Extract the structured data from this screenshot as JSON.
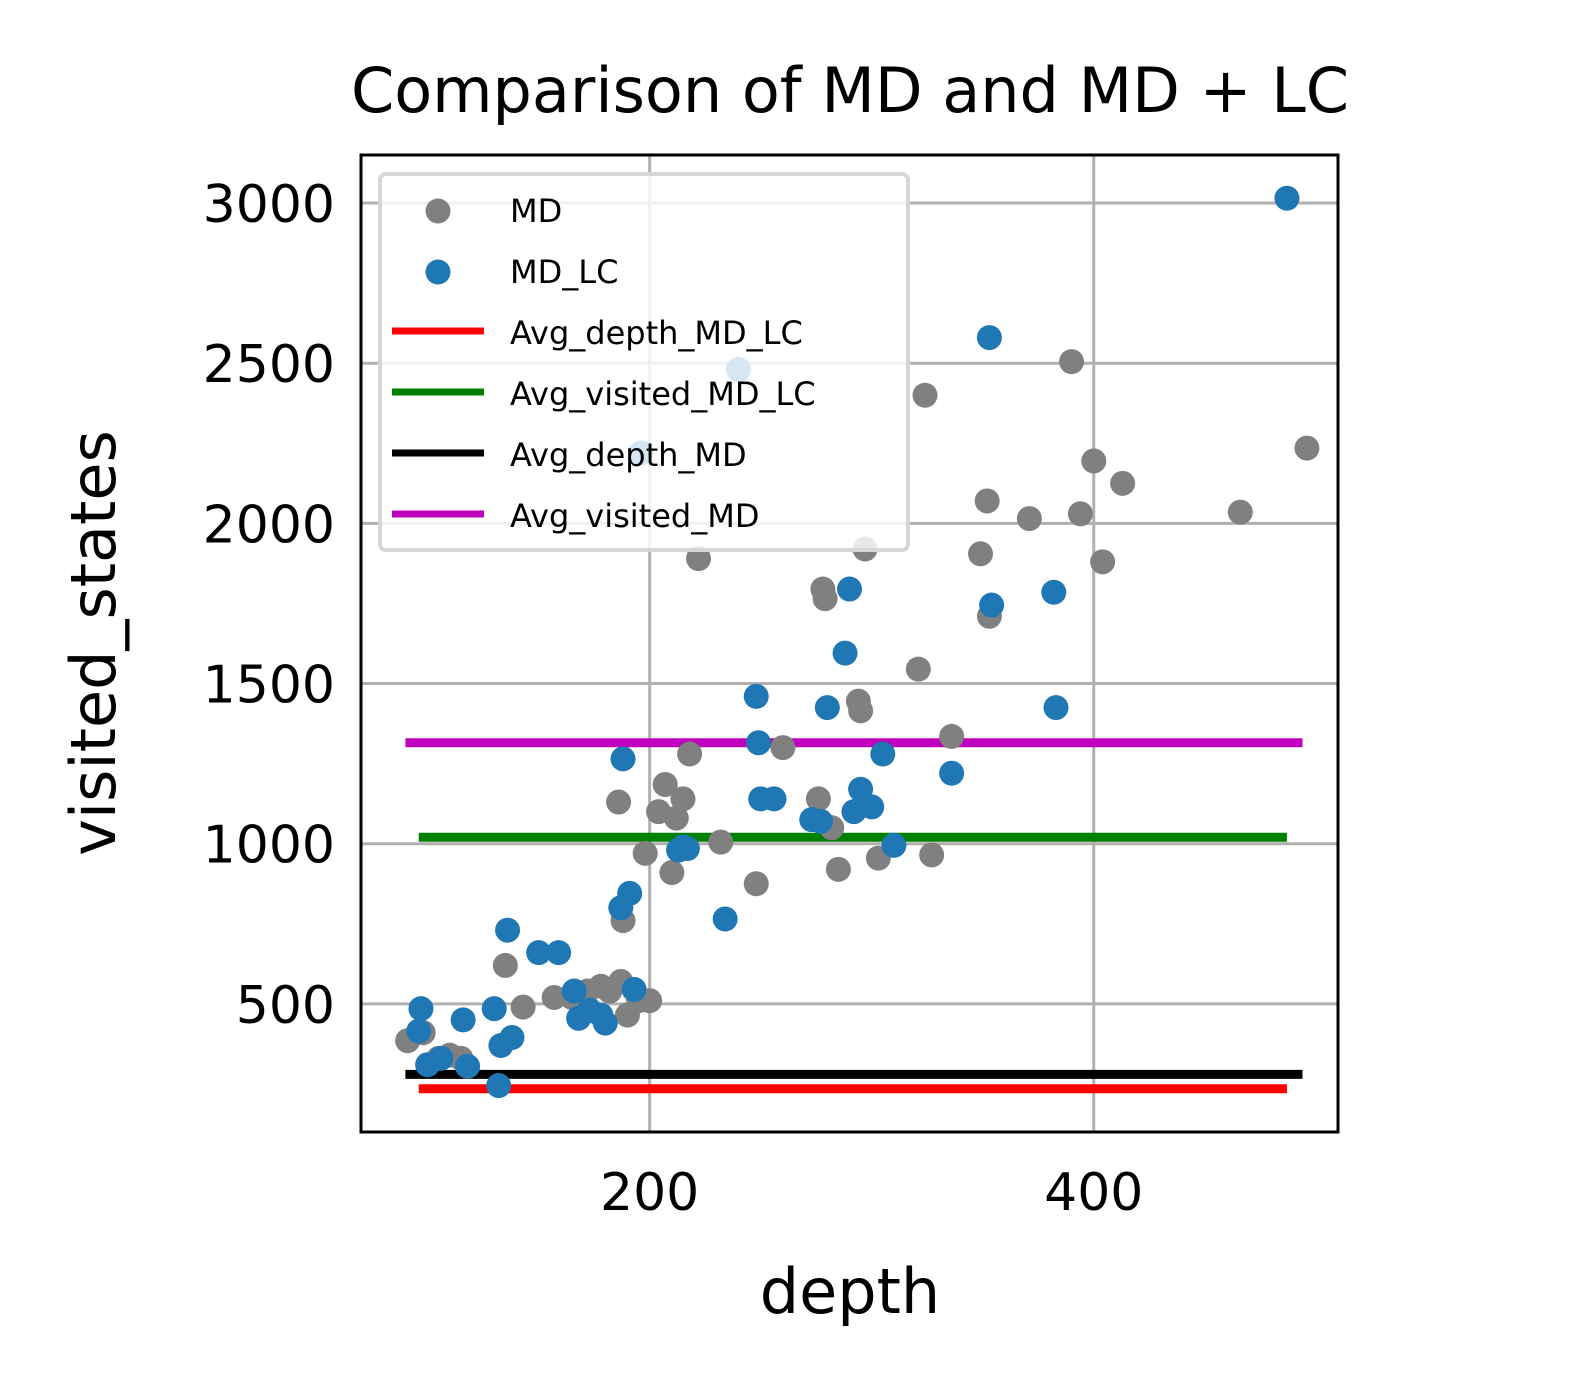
{
  "chart_data": {
    "type": "scatter",
    "title": "Comparison of MD and MD + LC",
    "xlabel": "depth",
    "ylabel": "visited_states",
    "xlim": [
      70,
      510
    ],
    "ylim": [
      100,
      3150
    ],
    "xticks": [
      200,
      400
    ],
    "yticks": [
      500,
      1000,
      1500,
      2000,
      2500,
      3000
    ],
    "grid": true,
    "legend_position": "top-left",
    "colors": {
      "MD": "#808080",
      "MD_LC": "#1f77b4"
    },
    "scatter_series": [
      {
        "name": "MD",
        "color": "#808080",
        "points": [
          [
            91,
            385
          ],
          [
            98,
            410
          ],
          [
            105,
            330
          ],
          [
            110,
            340
          ],
          [
            115,
            330
          ],
          [
            135,
            620
          ],
          [
            143,
            490
          ],
          [
            157,
            520
          ],
          [
            165,
            520
          ],
          [
            172,
            540
          ],
          [
            178,
            555
          ],
          [
            182,
            540
          ],
          [
            187,
            570
          ],
          [
            190,
            465
          ],
          [
            195,
            510
          ],
          [
            200,
            510
          ],
          [
            198,
            970
          ],
          [
            186,
            1130
          ],
          [
            188,
            760
          ],
          [
            204,
            1100
          ],
          [
            207,
            1185
          ],
          [
            210,
            910
          ],
          [
            212,
            1080
          ],
          [
            215,
            1140
          ],
          [
            218,
            1280
          ],
          [
            222,
            1890
          ],
          [
            232,
            1005
          ],
          [
            248,
            875
          ],
          [
            260,
            1300
          ],
          [
            276,
            1140
          ],
          [
            278,
            1795
          ],
          [
            279,
            1765
          ],
          [
            282,
            1050
          ],
          [
            285,
            920
          ],
          [
            294,
            1445
          ],
          [
            295,
            1415
          ],
          [
            297,
            1920
          ],
          [
            303,
            955
          ],
          [
            321,
            1545
          ],
          [
            324,
            2400
          ],
          [
            327,
            965
          ],
          [
            336,
            1335
          ],
          [
            349,
            1905
          ],
          [
            352,
            2070
          ],
          [
            353,
            1710
          ],
          [
            371,
            2015
          ],
          [
            390,
            2505
          ],
          [
            394,
            2030
          ],
          [
            400,
            2195
          ],
          [
            404,
            1880
          ],
          [
            413,
            2125
          ],
          [
            466,
            2035
          ],
          [
            496,
            2235
          ]
        ]
      },
      {
        "name": "MD_LC",
        "color": "#1f77b4",
        "points": [
          [
            96,
            415
          ],
          [
            97,
            485
          ],
          [
            100,
            310
          ],
          [
            106,
            330
          ],
          [
            116,
            450
          ],
          [
            118,
            305
          ],
          [
            130,
            485
          ],
          [
            132,
            245
          ],
          [
            133,
            370
          ],
          [
            136,
            730
          ],
          [
            138,
            395
          ],
          [
            150,
            660
          ],
          [
            159,
            660
          ],
          [
            166,
            540
          ],
          [
            168,
            455
          ],
          [
            173,
            480
          ],
          [
            178,
            465
          ],
          [
            180,
            440
          ],
          [
            187,
            800
          ],
          [
            188,
            1265
          ],
          [
            191,
            845
          ],
          [
            193,
            545
          ],
          [
            196,
            2220
          ],
          [
            213,
            980
          ],
          [
            215,
            990
          ],
          [
            217,
            985
          ],
          [
            234,
            765
          ],
          [
            240,
            2480
          ],
          [
            248,
            1460
          ],
          [
            249,
            1315
          ],
          [
            250,
            1140
          ],
          [
            256,
            1140
          ],
          [
            273,
            1075
          ],
          [
            277,
            1070
          ],
          [
            280,
            1425
          ],
          [
            288,
            1595
          ],
          [
            290,
            1795
          ],
          [
            292,
            1100
          ],
          [
            295,
            1170
          ],
          [
            300,
            1115
          ],
          [
            305,
            1280
          ],
          [
            310,
            995
          ],
          [
            336,
            1220
          ],
          [
            353,
            2580
          ],
          [
            354,
            1745
          ],
          [
            382,
            1785
          ],
          [
            383,
            1425
          ],
          [
            487,
            3015
          ]
        ]
      }
    ],
    "line_series": [
      {
        "name": "Avg_depth_MD_LC",
        "color": "#ff0000",
        "x": [
          96,
          487
        ],
        "y": [
          235,
          235
        ]
      },
      {
        "name": "Avg_visited_MD_LC",
        "color": "#008000",
        "x": [
          96,
          487
        ],
        "y": [
          1020,
          1020
        ]
      },
      {
        "name": "Avg_depth_MD",
        "color": "#000000",
        "x": [
          90,
          494
        ],
        "y": [
          280,
          280
        ]
      },
      {
        "name": "Avg_visited_MD",
        "color": "#bf00bf",
        "x": [
          90,
          494
        ],
        "y": [
          1315,
          1315
        ]
      }
    ]
  }
}
